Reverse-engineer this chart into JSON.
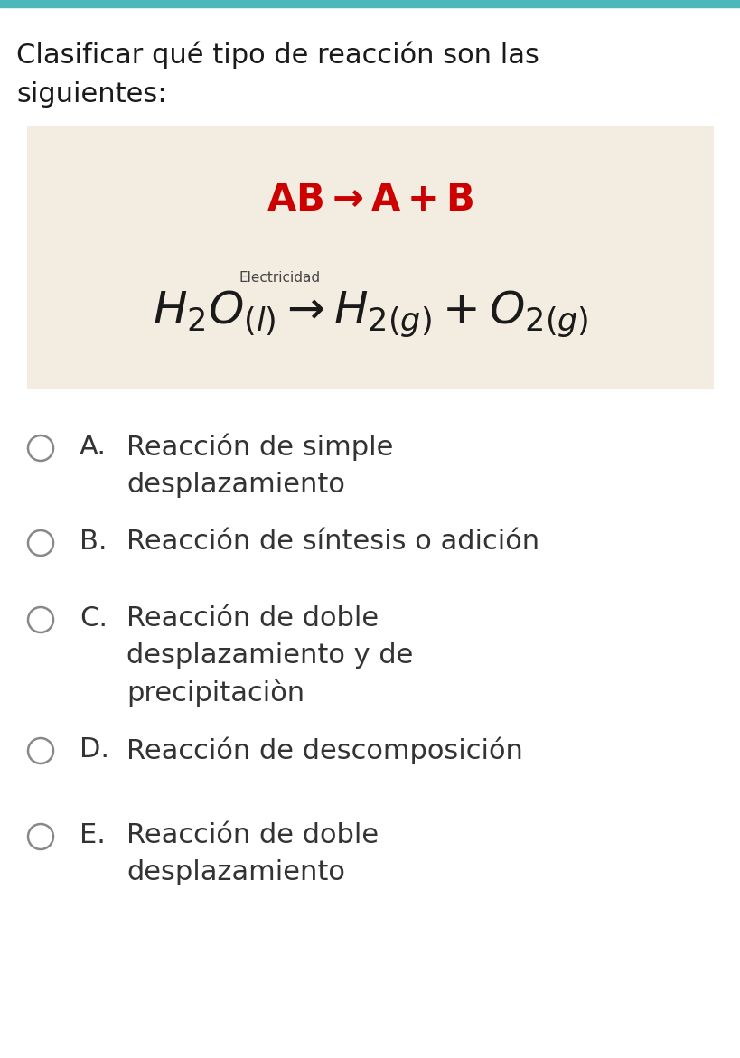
{
  "background_color": "#ffffff",
  "top_bar_color": "#4db8bb",
  "question_text_line1": "Clasificar qué tipo de reacción son las",
  "question_text_line2": "siguientes:",
  "box_bg_color": "#f2ede0",
  "options": [
    {
      "label": "A.",
      "text": "Reacción de simple\ndesplazamiento"
    },
    {
      "label": "B.",
      "text": "Reacción de síntesis o adición"
    },
    {
      "label": "C.",
      "text": "Reacción de doble\ndesplazamiento y de\nprecipitaciòn"
    },
    {
      "label": "D.",
      "text": "Reacción de descomposición"
    },
    {
      "label": "E.",
      "text": "Reacción de doble\ndesplazamiento"
    }
  ],
  "option_text_color": "#333333",
  "red_color": "#cc0000",
  "electricidad_label": "Electricidad"
}
